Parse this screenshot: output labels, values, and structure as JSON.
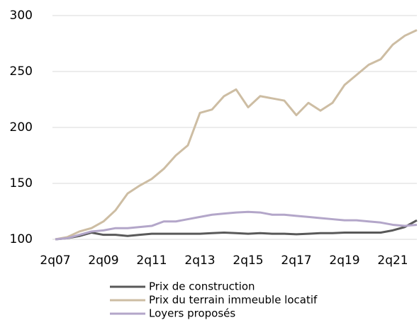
{
  "chart_data": {
    "type": "line",
    "categories": [
      "2q07",
      null,
      null,
      null,
      "2q09",
      null,
      null,
      null,
      "2q11",
      null,
      null,
      null,
      "2q13",
      null,
      null,
      null,
      "2q15",
      null,
      null,
      null,
      "2q17",
      null,
      null,
      null,
      "2q19",
      null,
      null,
      null,
      "2q21",
      null,
      null
    ],
    "series": [
      {
        "name": "Prix de construction",
        "color": "#595959",
        "values": [
          100,
          101,
          103,
          106,
          104,
          104,
          103,
          104,
          105,
          105,
          105,
          105,
          105,
          105.5,
          106,
          105.5,
          105,
          105.5,
          105,
          105,
          104.5,
          105,
          105.5,
          105.5,
          106,
          106,
          106,
          106,
          108,
          111,
          117
        ]
      },
      {
        "name": "Prix du terrain immeuble locatif",
        "color": "#cdbda3",
        "values": [
          100,
          102,
          107,
          110,
          116,
          126,
          141,
          148,
          154,
          163,
          175,
          184,
          213,
          216,
          228,
          234,
          218,
          228,
          226,
          224,
          211,
          222,
          215,
          222,
          238,
          247,
          256,
          261,
          274,
          282,
          287
        ]
      },
      {
        "name": "Loyers proposés",
        "color": "#b3a6c9",
        "values": [
          100,
          101,
          104,
          107,
          108,
          110,
          110,
          111,
          112,
          116,
          116,
          118,
          120,
          122,
          123,
          124,
          124.5,
          124,
          122,
          122,
          121,
          120,
          119,
          118,
          117,
          117,
          116,
          115,
          113,
          112,
          113
        ]
      }
    ],
    "ylim": [
      100,
      300
    ],
    "yticks": [
      100,
      150,
      200,
      250,
      300
    ],
    "grid": true,
    "legend": "bottom"
  }
}
